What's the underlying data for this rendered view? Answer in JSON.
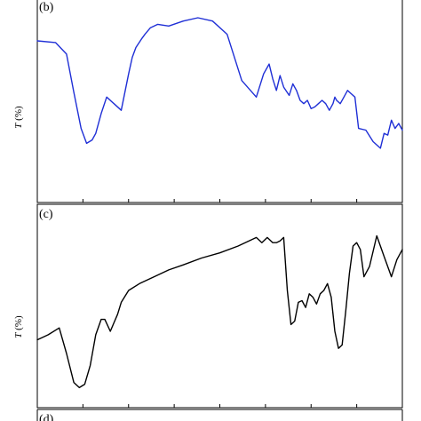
{
  "chart_data": [
    {
      "type": "line",
      "panel_label": "(b)",
      "ylabel_symbol": "T",
      "ylabel_unit": " (%)",
      "color": "#1f2fd6",
      "y_range": [
        0,
        1
      ],
      "x_range": [
        0,
        1
      ],
      "series": [
        {
          "x": [
            0.0,
            0.05,
            0.08,
            0.1,
            0.12,
            0.135,
            0.15,
            0.16,
            0.175,
            0.19,
            0.21,
            0.23,
            0.25,
            0.26,
            0.27,
            0.285,
            0.295,
            0.31,
            0.33,
            0.36,
            0.4,
            0.44,
            0.48,
            0.52,
            0.56,
            0.6,
            0.62,
            0.635,
            0.645,
            0.655,
            0.665,
            0.675,
            0.69,
            0.7,
            0.71,
            0.72,
            0.73,
            0.74,
            0.75,
            0.76,
            0.77,
            0.78,
            0.79,
            0.8,
            0.81,
            0.815,
            0.82,
            0.83,
            0.84,
            0.85,
            0.86,
            0.87,
            0.88,
            0.9,
            0.92,
            0.94,
            0.95,
            0.96,
            0.97,
            0.98,
            0.99,
            1.0
          ],
          "y": [
            0.86,
            0.85,
            0.78,
            0.55,
            0.33,
            0.24,
            0.26,
            0.3,
            0.42,
            0.52,
            0.48,
            0.44,
            0.66,
            0.76,
            0.82,
            0.87,
            0.9,
            0.94,
            0.96,
            0.95,
            0.98,
            1.0,
            0.98,
            0.9,
            0.62,
            0.52,
            0.66,
            0.72,
            0.63,
            0.56,
            0.65,
            0.58,
            0.53,
            0.6,
            0.56,
            0.5,
            0.48,
            0.5,
            0.45,
            0.46,
            0.48,
            0.5,
            0.48,
            0.44,
            0.48,
            0.52,
            0.5,
            0.48,
            0.52,
            0.56,
            0.54,
            0.52,
            0.33,
            0.32,
            0.25,
            0.21,
            0.3,
            0.29,
            0.38,
            0.33,
            0.36,
            0.32
          ]
        }
      ]
    },
    {
      "type": "line",
      "panel_label": "(c)",
      "ylabel_symbol": "T",
      "ylabel_unit": " (%)",
      "color": "#000000",
      "y_range": [
        0,
        1
      ],
      "x_range": [
        0,
        1
      ],
      "series": [
        {
          "x": [
            0.0,
            0.03,
            0.06,
            0.08,
            0.1,
            0.115,
            0.13,
            0.145,
            0.16,
            0.175,
            0.185,
            0.2,
            0.21,
            0.22,
            0.23,
            0.25,
            0.28,
            0.32,
            0.36,
            0.4,
            0.45,
            0.5,
            0.55,
            0.6,
            0.615,
            0.63,
            0.645,
            0.655,
            0.665,
            0.675,
            0.685,
            0.695,
            0.705,
            0.715,
            0.725,
            0.735,
            0.745,
            0.755,
            0.765,
            0.775,
            0.785,
            0.795,
            0.805,
            0.815,
            0.825,
            0.835,
            0.845,
            0.855,
            0.865,
            0.875,
            0.885,
            0.895,
            0.91,
            0.93,
            0.95,
            0.97,
            0.985,
            1.0
          ],
          "y": [
            0.33,
            0.36,
            0.4,
            0.25,
            0.08,
            0.05,
            0.07,
            0.18,
            0.36,
            0.45,
            0.45,
            0.38,
            0.43,
            0.48,
            0.55,
            0.62,
            0.66,
            0.7,
            0.74,
            0.77,
            0.81,
            0.84,
            0.88,
            0.93,
            0.9,
            0.93,
            0.9,
            0.9,
            0.91,
            0.93,
            0.62,
            0.42,
            0.44,
            0.55,
            0.56,
            0.52,
            0.6,
            0.58,
            0.54,
            0.6,
            0.62,
            0.66,
            0.58,
            0.38,
            0.28,
            0.3,
            0.5,
            0.72,
            0.88,
            0.9,
            0.86,
            0.7,
            0.76,
            0.94,
            0.82,
            0.7,
            0.8,
            0.86
          ]
        }
      ]
    },
    {
      "type": "line",
      "panel_label": "(d)"
    }
  ]
}
